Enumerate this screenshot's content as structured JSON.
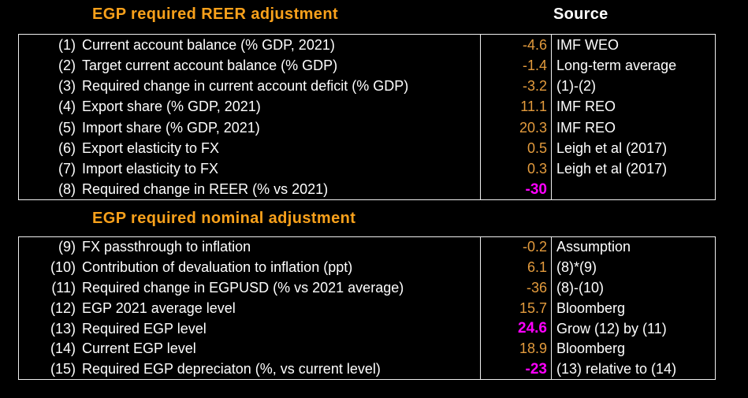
{
  "colors": {
    "background": "#000000",
    "title_orange": "#f9a11b",
    "value_orange": "#e39b3d",
    "highlight_magenta": "#ff00ff",
    "text_white": "#ffffff",
    "border": "#f0f0f0"
  },
  "header": {
    "source_label": "Source"
  },
  "sections": [
    {
      "title": "EGP required REER adjustment",
      "rows": [
        {
          "num": "(1)",
          "label": "Current account balance (% GDP, 2021)",
          "value": "-4.6",
          "source": "IMF WEO"
        },
        {
          "num": "(2)",
          "label": "Target current account balance (% GDP)",
          "value": "-1.4",
          "source": "Long-term average"
        },
        {
          "num": "(3)",
          "label": "Required change in current account deficit (% GDP)",
          "value": "-3.2",
          "source": "(1)-(2)"
        },
        {
          "num": "(4)",
          "label": "Export share (% GDP, 2021)",
          "value": "11.1",
          "source": "IMF REO"
        },
        {
          "num": "(5)",
          "label": "Import share (% GDP, 2021)",
          "value": "20.3",
          "source": "IMF REO"
        },
        {
          "num": "(6)",
          "label": "Export elasticity to FX",
          "value": "0.5",
          "source": "Leigh et al (2017)"
        },
        {
          "num": "(7)",
          "label": "Import elasticity to FX",
          "value": "0.3",
          "source": "Leigh et al (2017)"
        },
        {
          "num": "(8)",
          "label": "Required change in REER (% vs 2021)",
          "value": "-30",
          "source": ""
        }
      ]
    },
    {
      "title": "EGP required nominal adjustment",
      "rows": [
        {
          "num": "(9)",
          "label": "FX passthrough to inflation",
          "value": "-0.2",
          "source": "Assumption"
        },
        {
          "num": "(10)",
          "label": "Contribution of devaluation to inflation (ppt)",
          "value": "6.1",
          "source": "(8)*(9)"
        },
        {
          "num": "(11)",
          "label": "Required change in EGPUSD (% vs 2021 average)",
          "value": "-36",
          "source": "(8)-(10)"
        },
        {
          "num": "(12)",
          "label": "EGP 2021 average level",
          "value": "15.7",
          "source": "Bloomberg"
        },
        {
          "num": "(13)",
          "label": "Required EGP level",
          "value": "24.6",
          "source": "Grow (12) by (11)"
        },
        {
          "num": "(14)",
          "label": "Current EGP level",
          "value": "18.9",
          "source": "Bloomberg"
        },
        {
          "num": "(15)",
          "label": "Required EGP depreciaton (%, vs current level)",
          "value": "-23",
          "source": "(13) relative to (14)"
        }
      ]
    }
  ]
}
